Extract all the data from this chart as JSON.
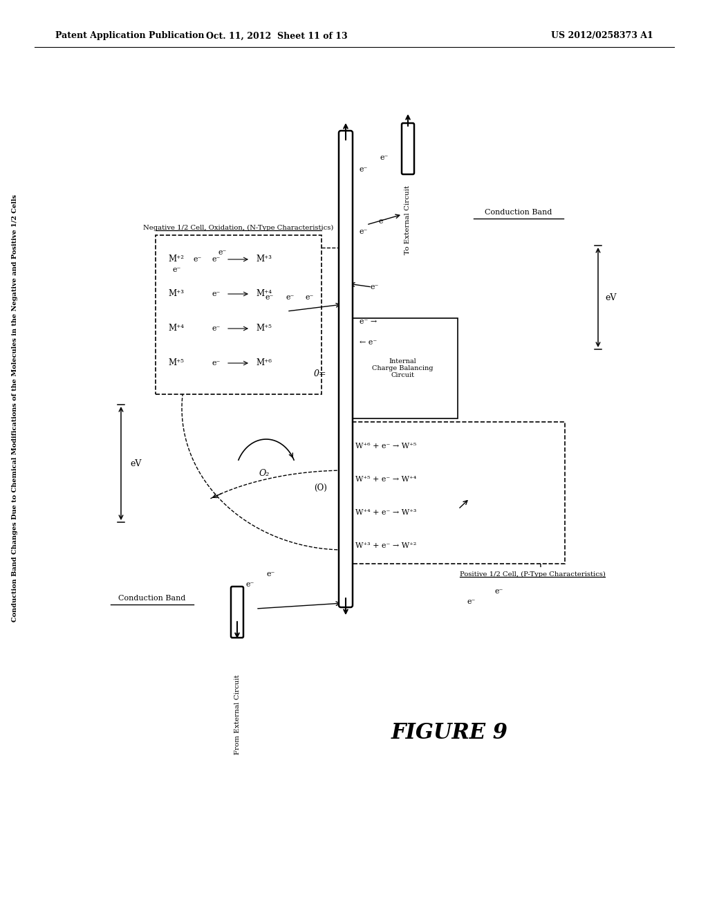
{
  "header_left": "Patent Application Publication",
  "header_center": "Oct. 11, 2012  Sheet 11 of 13",
  "header_right": "US 2012/0258373 A1",
  "figure_label": "FIGURE 9",
  "main_title": "Conduction Band Changes Due to Chemical Modifications of the Molecules in the Negative and Positive 1/2 Cells",
  "neg_cell_label": "Negative 1/2 Cell, Oxidation, (N-Type Characteristics)",
  "pos_cell_label": "Positive 1/2 Cell, (P-Type Characteristics)",
  "cond_band_left": "Conduction Band",
  "cond_band_right": "Conduction Band",
  "from_ext_circuit": "From External Circuit",
  "to_ext_circuit": "To External Circuit",
  "internal_circuit": "Internal\nCharge Balancing\nCircuit",
  "eV_left": "eV",
  "eV_right": "eV",
  "O2": "O₂",
  "O_paren": "(O)",
  "O_eq": "0=",
  "neg_left": [
    "M⁺²",
    "M⁺³",
    "M⁺⁴",
    "M⁺⁵"
  ],
  "neg_right": [
    "M⁺³",
    "M⁺⁴",
    "M⁺⁵",
    "M⁺⁶"
  ],
  "pos_rows": [
    "W⁺⁶ + e⁻ → W⁺⁵",
    "W⁺⁵ + e⁻ → W⁺⁴",
    "W⁺⁴ + e⁻ → W⁺³",
    "W⁺³ + e⁻ → W⁺²"
  ],
  "bg_color": "#ffffff"
}
